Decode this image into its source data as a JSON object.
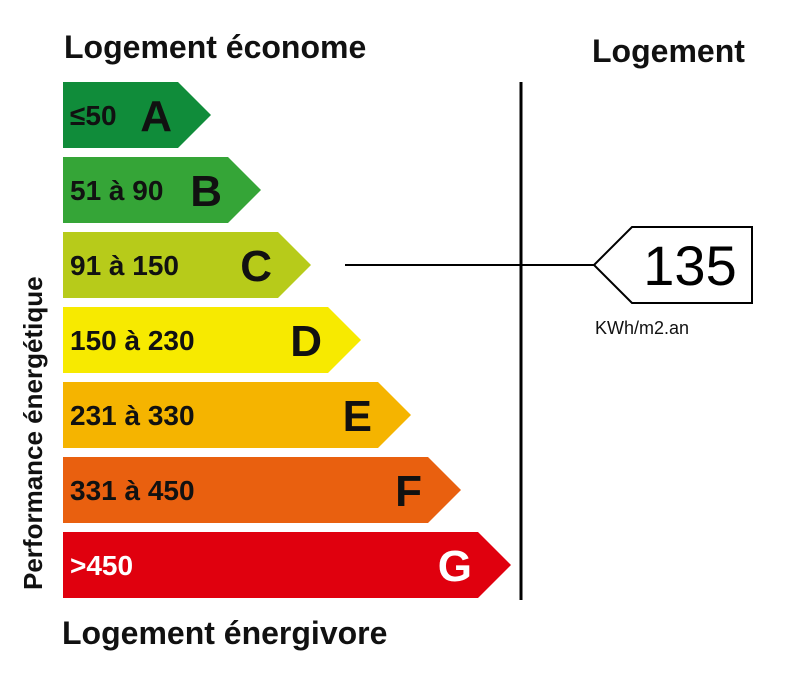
{
  "header": {
    "top_left": "Logement économe",
    "top_right": "Logement",
    "bottom_left": "Logement énergivore",
    "side_label": "Performance énergétique"
  },
  "classes": [
    {
      "letter": "A",
      "range": "≤50",
      "color": "#108c3a",
      "text_color": "#111111"
    },
    {
      "letter": "B",
      "range": "51 à 90",
      "color": "#35a537",
      "text_color": "#111111"
    },
    {
      "letter": "C",
      "range": "91 à 150",
      "color": "#b7cb1a",
      "text_color": "#111111"
    },
    {
      "letter": "D",
      "range": "150 à 230",
      "color": "#f7ea00",
      "text_color": "#111111"
    },
    {
      "letter": "E",
      "range": "231 à 330",
      "color": "#f5b400",
      "text_color": "#111111"
    },
    {
      "letter": "F",
      "range": "331 à 450",
      "color": "#e9600f",
      "text_color": "#111111"
    },
    {
      "letter": "G",
      "range": ">450",
      "color": "#e0000e",
      "text_color": "#ffffff"
    }
  ],
  "indicator": {
    "value": "135",
    "unit": "KWh/m2.an",
    "class_index": 2
  }
}
